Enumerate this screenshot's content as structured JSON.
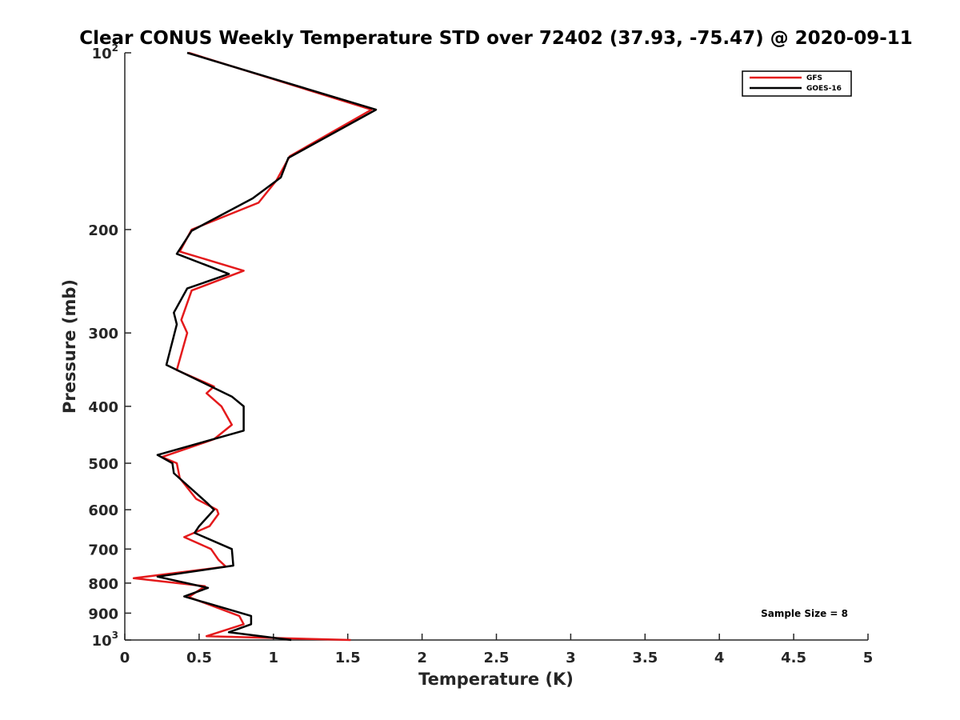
{
  "chart_data": {
    "type": "line",
    "title": "Clear CONUS Weekly Temperature STD over 72402 (37.93, -75.47) @ 2020-09-11",
    "xlabel": "Temperature (K)",
    "ylabel": "Pressure (mb)",
    "xlim": [
      0,
      5
    ],
    "ylim": [
      100,
      1000
    ],
    "y_scale": "log",
    "y_reversed": true,
    "grid": false,
    "legend_position": "top-right",
    "x_ticks": [
      {
        "value": 0,
        "label": "0"
      },
      {
        "value": 0.5,
        "label": "0.5"
      },
      {
        "value": 1,
        "label": "1"
      },
      {
        "value": 1.5,
        "label": "1.5"
      },
      {
        "value": 2,
        "label": "2"
      },
      {
        "value": 2.5,
        "label": "2.5"
      },
      {
        "value": 3,
        "label": "3"
      },
      {
        "value": 3.5,
        "label": "3.5"
      },
      {
        "value": 4,
        "label": "4"
      },
      {
        "value": 4.5,
        "label": "4.5"
      },
      {
        "value": 5,
        "label": "5"
      }
    ],
    "y_ticks": [
      {
        "value": 100,
        "label": "10",
        "exp": "2"
      },
      {
        "value": 200,
        "label": "200"
      },
      {
        "value": 300,
        "label": "300"
      },
      {
        "value": 400,
        "label": "400"
      },
      {
        "value": 500,
        "label": "500"
      },
      {
        "value": 600,
        "label": "600"
      },
      {
        "value": 700,
        "label": "700"
      },
      {
        "value": 800,
        "label": "800"
      },
      {
        "value": 900,
        "label": "900"
      },
      {
        "value": 1000,
        "label": "10",
        "exp": "3"
      }
    ],
    "series": [
      {
        "name": "GFS",
        "color": "#e41a1c",
        "points": [
          {
            "x": 0.43,
            "p": 100
          },
          {
            "x": 1.66,
            "p": 125
          },
          {
            "x": 1.11,
            "p": 150
          },
          {
            "x": 1.02,
            "p": 165
          },
          {
            "x": 0.9,
            "p": 180
          },
          {
            "x": 0.45,
            "p": 200
          },
          {
            "x": 0.37,
            "p": 218
          },
          {
            "x": 0.8,
            "p": 235
          },
          {
            "x": 0.45,
            "p": 254
          },
          {
            "x": 0.38,
            "p": 285
          },
          {
            "x": 0.42,
            "p": 300
          },
          {
            "x": 0.35,
            "p": 347
          },
          {
            "x": 0.6,
            "p": 370
          },
          {
            "x": 0.55,
            "p": 380
          },
          {
            "x": 0.65,
            "p": 400
          },
          {
            "x": 0.72,
            "p": 430
          },
          {
            "x": 0.6,
            "p": 455
          },
          {
            "x": 0.25,
            "p": 488
          },
          {
            "x": 0.35,
            "p": 500
          },
          {
            "x": 0.37,
            "p": 530
          },
          {
            "x": 0.48,
            "p": 575
          },
          {
            "x": 0.62,
            "p": 600
          },
          {
            "x": 0.63,
            "p": 610
          },
          {
            "x": 0.57,
            "p": 640
          },
          {
            "x": 0.4,
            "p": 668
          },
          {
            "x": 0.58,
            "p": 700
          },
          {
            "x": 0.63,
            "p": 730
          },
          {
            "x": 0.68,
            "p": 750
          },
          {
            "x": 0.06,
            "p": 785
          },
          {
            "x": 0.54,
            "p": 810
          },
          {
            "x": 0.43,
            "p": 845
          },
          {
            "x": 0.77,
            "p": 910
          },
          {
            "x": 0.8,
            "p": 940
          },
          {
            "x": 0.55,
            "p": 985
          },
          {
            "x": 1.52,
            "p": 1000
          }
        ]
      },
      {
        "name": "GOES-16",
        "color": "#000000",
        "points": [
          {
            "x": 0.42,
            "p": 100
          },
          {
            "x": 1.69,
            "p": 125
          },
          {
            "x": 1.1,
            "p": 151
          },
          {
            "x": 1.05,
            "p": 163
          },
          {
            "x": 0.86,
            "p": 177
          },
          {
            "x": 0.45,
            "p": 201
          },
          {
            "x": 0.35,
            "p": 220
          },
          {
            "x": 0.7,
            "p": 238
          },
          {
            "x": 0.42,
            "p": 252
          },
          {
            "x": 0.33,
            "p": 277
          },
          {
            "x": 0.35,
            "p": 290
          },
          {
            "x": 0.28,
            "p": 340
          },
          {
            "x": 0.72,
            "p": 385
          },
          {
            "x": 0.8,
            "p": 400
          },
          {
            "x": 0.8,
            "p": 440
          },
          {
            "x": 0.22,
            "p": 484
          },
          {
            "x": 0.32,
            "p": 500
          },
          {
            "x": 0.33,
            "p": 520
          },
          {
            "x": 0.55,
            "p": 583
          },
          {
            "x": 0.6,
            "p": 600
          },
          {
            "x": 0.5,
            "p": 640
          },
          {
            "x": 0.47,
            "p": 657
          },
          {
            "x": 0.72,
            "p": 700
          },
          {
            "x": 0.73,
            "p": 747
          },
          {
            "x": 0.22,
            "p": 780
          },
          {
            "x": 0.56,
            "p": 815
          },
          {
            "x": 0.4,
            "p": 843
          },
          {
            "x": 0.85,
            "p": 910
          },
          {
            "x": 0.85,
            "p": 940
          },
          {
            "x": 0.7,
            "p": 970
          },
          {
            "x": 1.12,
            "p": 1000
          }
        ]
      }
    ],
    "annotations": [
      {
        "text": "Sample Size = 8",
        "position": "bottom-right"
      }
    ]
  }
}
